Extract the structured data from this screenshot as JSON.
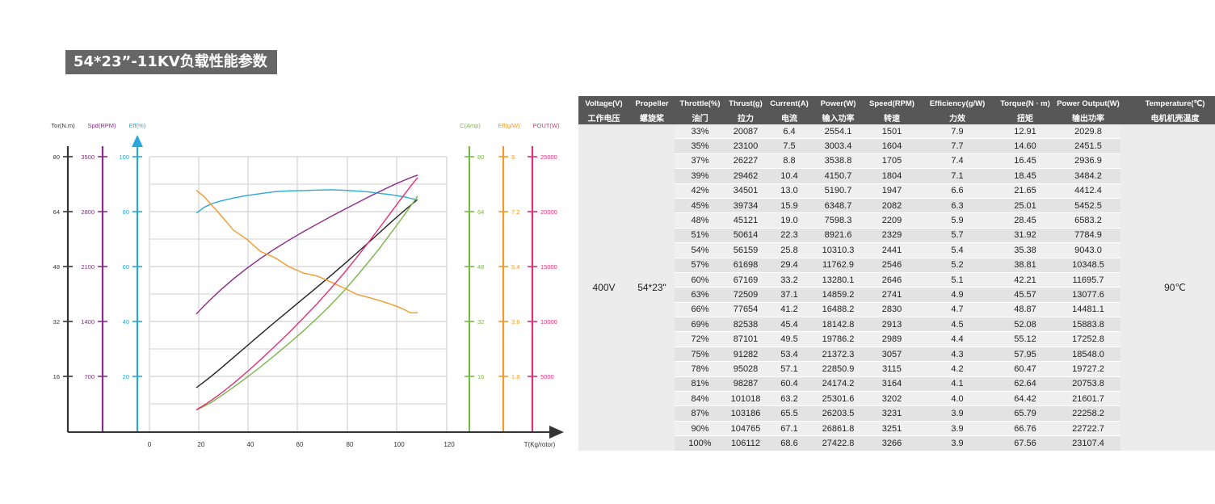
{
  "title": "54*23”-11KV负载性能参数",
  "colors": {
    "torque": "#222222",
    "speed": "#8a2a8a",
    "efficiency": "#2aa8d8",
    "current": "#7ab648",
    "force_efficiency": "#f39a2b",
    "power_out": "#e0307a",
    "grid": "#d2d2d2",
    "badge": "#666666"
  },
  "chart_data": {
    "type": "line",
    "xlabel": "T(Kg/rotor)",
    "x_ticks": [
      "0",
      "20",
      "40",
      "60",
      "80",
      "100",
      "120"
    ],
    "xlim": [
      0,
      120
    ],
    "grid": true,
    "axes": [
      {
        "key": "torque",
        "label": "Tor(N.m)",
        "ticks": [
          "80",
          "64",
          "48",
          "32",
          "16"
        ],
        "range": [
          0,
          80
        ],
        "side": "left"
      },
      {
        "key": "speed",
        "label": "Spd(RPM)",
        "ticks": [
          "3500",
          "2800",
          "2100",
          "1400",
          "700"
        ],
        "range": [
          0,
          3500
        ],
        "side": "left"
      },
      {
        "key": "efficiency",
        "label": "Eff(%)",
        "ticks": [
          "100",
          "80",
          "60",
          "40",
          "20"
        ],
        "range": [
          0,
          100
        ],
        "side": "left"
      },
      {
        "key": "current",
        "label": "C(Amp)",
        "ticks": [
          "80",
          "64",
          "48",
          "32",
          "16"
        ],
        "range": [
          0,
          80
        ],
        "side": "right"
      },
      {
        "key": "force_efficiency",
        "label": "Eff(g/W)",
        "ticks": [
          "9",
          "7.2",
          "5.4",
          "3.6",
          "1.8"
        ],
        "range": [
          0,
          9
        ],
        "side": "right"
      },
      {
        "key": "power_out",
        "label": "POUT(W)",
        "ticks": [
          "25000",
          "20000",
          "15000",
          "10000",
          "5000"
        ],
        "range": [
          0,
          25000
        ],
        "side": "right"
      }
    ],
    "x": [
      20.087,
      23.1,
      26.227,
      29.462,
      34.501,
      39.734,
      45.121,
      50.614,
      56.159,
      61.698,
      67.169,
      72.509,
      77.654,
      82.538,
      87.101,
      91.282,
      95.028,
      98.287,
      101.018,
      103.186,
      104.765,
      106.112
    ],
    "series": [
      {
        "key": "torque",
        "values": [
          12.91,
          14.6,
          16.45,
          18.45,
          21.65,
          25.01,
          28.45,
          31.92,
          35.38,
          38.81,
          42.21,
          45.57,
          48.87,
          52.08,
          55.12,
          57.95,
          60.47,
          62.64,
          64.42,
          65.79,
          66.76,
          67.56
        ]
      },
      {
        "key": "speed",
        "values": [
          1501,
          1604,
          1705,
          1804,
          1947,
          2082,
          2209,
          2329,
          2441,
          2546,
          2646,
          2741,
          2830,
          2913,
          2989,
          3057,
          3115,
          3164,
          3202,
          3231,
          3251,
          3266
        ]
      },
      {
        "key": "efficiency",
        "values": [
          79.5,
          81.6,
          83.0,
          83.9,
          85.0,
          85.9,
          86.6,
          87.3,
          87.6,
          87.7,
          87.9,
          88.0,
          87.8,
          87.5,
          87.2,
          86.7,
          86.3,
          85.8,
          85.4,
          84.9,
          84.6,
          84.3
        ]
      },
      {
        "key": "current",
        "values": [
          6.4,
          7.5,
          8.8,
          10.4,
          13.0,
          15.9,
          19.0,
          22.3,
          25.8,
          29.4,
          33.2,
          37.1,
          41.2,
          45.4,
          49.5,
          53.4,
          57.1,
          60.4,
          63.2,
          65.5,
          67.1,
          68.6
        ]
      },
      {
        "key": "force_efficiency",
        "values": [
          7.9,
          7.7,
          7.4,
          7.1,
          6.6,
          6.3,
          5.9,
          5.7,
          5.4,
          5.2,
          5.1,
          4.9,
          4.7,
          4.5,
          4.4,
          4.3,
          4.2,
          4.1,
          4.0,
          3.9,
          3.9,
          3.9
        ]
      },
      {
        "key": "power_out",
        "values": [
          2029.8,
          2451.5,
          2936.9,
          3484.2,
          4412.4,
          5452.5,
          6583.2,
          7784.9,
          9043.0,
          10348.5,
          11695.7,
          13077.6,
          14481.1,
          15883.8,
          17252.8,
          18548.0,
          19727.2,
          20753.8,
          21601.7,
          22258.2,
          22722.7,
          23107.4
        ]
      }
    ]
  },
  "table": {
    "headers": [
      {
        "en": "Voltage(V)",
        "cn": "工作电压"
      },
      {
        "en": "Propeller",
        "cn": "螺旋桨"
      },
      {
        "en": "Throttle(%)",
        "cn": "油门"
      },
      {
        "en": "Thrust(g)",
        "cn": "拉力"
      },
      {
        "en": "Current(A)",
        "cn": "电流"
      },
      {
        "en": "Power(W)",
        "cn": "输入功率"
      },
      {
        "en": "Speed(RPM)",
        "cn": "转速"
      },
      {
        "en": "Efficiency(g/W)",
        "cn": "力效"
      },
      {
        "en": "Torque(N · m)",
        "cn": "扭矩"
      },
      {
        "en": "Power Output(W)",
        "cn": "输出功率"
      },
      {
        "en": "Temperature(℃)",
        "cn": "电机机壳温度"
      }
    ],
    "voltage": "400V",
    "propeller": "54*23\"",
    "temperature": "90℃",
    "rows": [
      [
        "33%",
        "20087",
        "6.4",
        "2554.1",
        "1501",
        "7.9",
        "12.91",
        "2029.8"
      ],
      [
        "35%",
        "23100",
        "7.5",
        "3003.4",
        "1604",
        "7.7",
        "14.60",
        "2451.5"
      ],
      [
        "37%",
        "26227",
        "8.8",
        "3538.8",
        "1705",
        "7.4",
        "16.45",
        "2936.9"
      ],
      [
        "39%",
        "29462",
        "10.4",
        "4150.7",
        "1804",
        "7.1",
        "18.45",
        "3484.2"
      ],
      [
        "42%",
        "34501",
        "13.0",
        "5190.7",
        "1947",
        "6.6",
        "21.65",
        "4412.4"
      ],
      [
        "45%",
        "39734",
        "15.9",
        "6348.7",
        "2082",
        "6.3",
        "25.01",
        "5452.5"
      ],
      [
        "48%",
        "45121",
        "19.0",
        "7598.3",
        "2209",
        "5.9",
        "28.45",
        "6583.2"
      ],
      [
        "51%",
        "50614",
        "22.3",
        "8921.6",
        "2329",
        "5.7",
        "31.92",
        "7784.9"
      ],
      [
        "54%",
        "56159",
        "25.8",
        "10310.3",
        "2441",
        "5.4",
        "35.38",
        "9043.0"
      ],
      [
        "57%",
        "61698",
        "29.4",
        "11762.9",
        "2546",
        "5.2",
        "38.81",
        "10348.5"
      ],
      [
        "60%",
        "67169",
        "33.2",
        "13280.1",
        "2646",
        "5.1",
        "42.21",
        "11695.7"
      ],
      [
        "63%",
        "72509",
        "37.1",
        "14859.2",
        "2741",
        "4.9",
        "45.57",
        "13077.6"
      ],
      [
        "66%",
        "77654",
        "41.2",
        "16488.2",
        "2830",
        "4.7",
        "48.87",
        "14481.1"
      ],
      [
        "69%",
        "82538",
        "45.4",
        "18142.8",
        "2913",
        "4.5",
        "52.08",
        "15883.8"
      ],
      [
        "72%",
        "87101",
        "49.5",
        "19786.2",
        "2989",
        "4.4",
        "55.12",
        "17252.8"
      ],
      [
        "75%",
        "91282",
        "53.4",
        "21372.3",
        "3057",
        "4.3",
        "57.95",
        "18548.0"
      ],
      [
        "78%",
        "95028",
        "57.1",
        "22850.9",
        "3115",
        "4.2",
        "60.47",
        "19727.2"
      ],
      [
        "81%",
        "98287",
        "60.4",
        "24174.2",
        "3164",
        "4.1",
        "62.64",
        "20753.8"
      ],
      [
        "84%",
        "101018",
        "63.2",
        "25301.6",
        "3202",
        "4.0",
        "64.42",
        "21601.7"
      ],
      [
        "87%",
        "103186",
        "65.5",
        "26203.5",
        "3231",
        "3.9",
        "65.79",
        "22258.2"
      ],
      [
        "90%",
        "104765",
        "67.1",
        "26861.8",
        "3251",
        "3.9",
        "66.76",
        "22722.7"
      ],
      [
        "100%",
        "106112",
        "68.6",
        "27422.8",
        "3266",
        "3.9",
        "67.56",
        "23107.4"
      ]
    ]
  }
}
